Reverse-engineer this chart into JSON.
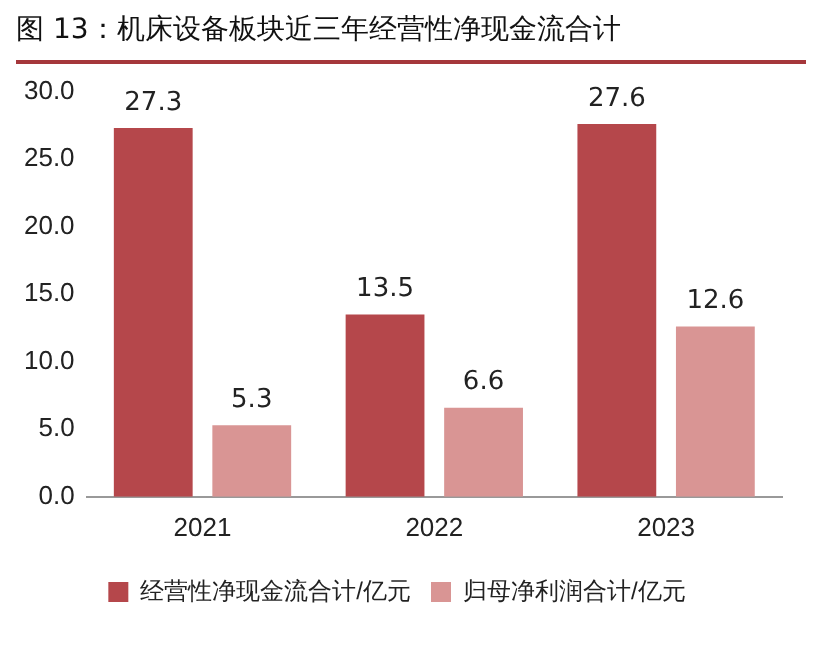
{
  "chart_data": {
    "type": "bar",
    "title": "图 13：机床设备板块近三年经营性净现金流合计",
    "categories": [
      "2021",
      "2022",
      "2023"
    ],
    "series": [
      {
        "name": "经营性净现金流合计/亿元",
        "color": "#b5474b",
        "values": [
          27.3,
          13.5,
          27.6
        ]
      },
      {
        "name": "归母净利润合计/亿元",
        "color": "#d99594",
        "values": [
          5.3,
          6.6,
          12.6
        ]
      }
    ],
    "ylim": [
      0,
      30
    ],
    "yticks": [
      {
        "value": 0,
        "label": "0.0"
      },
      {
        "value": 5,
        "label": "5.0"
      },
      {
        "value": 10,
        "label": "10.0"
      },
      {
        "value": 15,
        "label": "15.0"
      },
      {
        "value": 20,
        "label": "20.0"
      },
      {
        "value": 25,
        "label": "25.0"
      },
      {
        "value": 30,
        "label": "30.0"
      }
    ],
    "grid": false,
    "legend": "bottom",
    "data_labels": true
  }
}
